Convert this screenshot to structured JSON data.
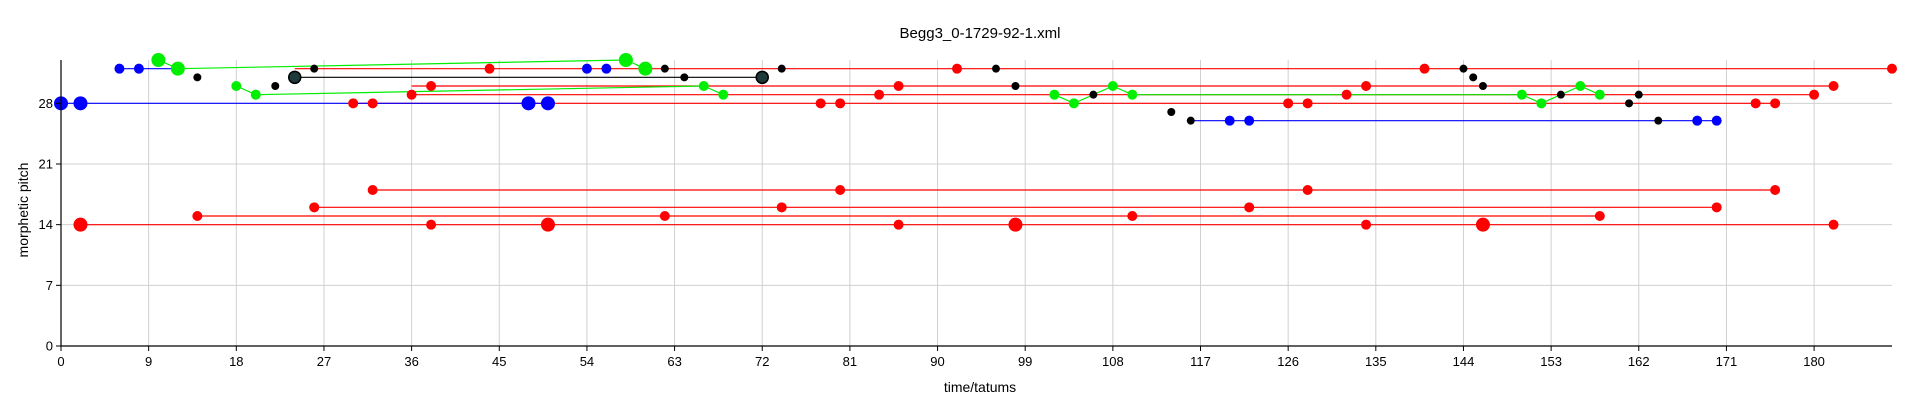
{
  "chart_data": {
    "type": "scatter",
    "title": "Begg3_0-1729-92-1.xml",
    "xlabel": "time/tatums",
    "ylabel": "morphetic pitch",
    "xlim": [
      0,
      188
    ],
    "ylim": [
      0,
      33
    ],
    "x_ticks": [
      0,
      9,
      18,
      27,
      36,
      45,
      54,
      63,
      72,
      81,
      90,
      99,
      108,
      117,
      126,
      135,
      144,
      153,
      162,
      171,
      180
    ],
    "y_ticks": [
      0,
      7,
      14,
      21,
      28
    ],
    "grid": true,
    "series": [
      {
        "color": "#ff0000",
        "lines": [
          [
            [
              24,
              32
            ],
            [
              188,
              32
            ]
          ],
          [
            [
              36,
              30
            ],
            [
              182,
              30
            ]
          ],
          [
            [
              30,
              28
            ],
            [
              176,
              28
            ]
          ],
          [
            [
              36,
              29
            ],
            [
              180,
              29
            ]
          ],
          [
            [
              32,
              18
            ],
            [
              176,
              18
            ]
          ],
          [
            [
              26,
              16
            ],
            [
              170,
              16
            ]
          ],
          [
            [
              14,
              15
            ],
            [
              158,
              15
            ]
          ],
          [
            [
              2,
              14
            ],
            [
              182,
              14
            ]
          ]
        ],
        "points": [
          {
            "x": 44,
            "y": 32,
            "s": 5
          },
          {
            "x": 92,
            "y": 32,
            "s": 5
          },
          {
            "x": 140,
            "y": 32,
            "s": 5
          },
          {
            "x": 188,
            "y": 32,
            "s": 5
          },
          {
            "x": 38,
            "y": 30,
            "s": 5
          },
          {
            "x": 86,
            "y": 30,
            "s": 5
          },
          {
            "x": 134,
            "y": 30,
            "s": 5
          },
          {
            "x": 182,
            "y": 30,
            "s": 5
          },
          {
            "x": 36,
            "y": 29,
            "s": 5
          },
          {
            "x": 84,
            "y": 29,
            "s": 5
          },
          {
            "x": 132,
            "y": 29,
            "s": 5
          },
          {
            "x": 180,
            "y": 29,
            "s": 5
          },
          {
            "x": 30,
            "y": 28,
            "s": 5
          },
          {
            "x": 32,
            "y": 28,
            "s": 5
          },
          {
            "x": 78,
            "y": 28,
            "s": 5
          },
          {
            "x": 80,
            "y": 28,
            "s": 5
          },
          {
            "x": 126,
            "y": 28,
            "s": 5
          },
          {
            "x": 128,
            "y": 28,
            "s": 5
          },
          {
            "x": 174,
            "y": 28,
            "s": 5
          },
          {
            "x": 176,
            "y": 28,
            "s": 5
          },
          {
            "x": 32,
            "y": 18,
            "s": 5
          },
          {
            "x": 80,
            "y": 18,
            "s": 5
          },
          {
            "x": 128,
            "y": 18,
            "s": 5
          },
          {
            "x": 176,
            "y": 18,
            "s": 5
          },
          {
            "x": 26,
            "y": 16,
            "s": 5
          },
          {
            "x": 74,
            "y": 16,
            "s": 5
          },
          {
            "x": 122,
            "y": 16,
            "s": 5
          },
          {
            "x": 170,
            "y": 16,
            "s": 5
          },
          {
            "x": 14,
            "y": 15,
            "s": 5
          },
          {
            "x": 62,
            "y": 15,
            "s": 5
          },
          {
            "x": 110,
            "y": 15,
            "s": 5
          },
          {
            "x": 158,
            "y": 15,
            "s": 5
          },
          {
            "x": 2,
            "y": 14,
            "s": 7
          },
          {
            "x": 38,
            "y": 14,
            "s": 5
          },
          {
            "x": 50,
            "y": 14,
            "s": 7
          },
          {
            "x": 86,
            "y": 14,
            "s": 5
          },
          {
            "x": 98,
            "y": 14,
            "s": 7
          },
          {
            "x": 134,
            "y": 14,
            "s": 5
          },
          {
            "x": 146,
            "y": 14,
            "s": 7
          },
          {
            "x": 182,
            "y": 14,
            "s": 5
          }
        ]
      },
      {
        "color": "#0000ff",
        "lines": [
          [
            [
              0,
              28
            ],
            [
              50,
              28
            ]
          ],
          [
            [
              6,
              32
            ],
            [
              12,
              32
            ]
          ],
          [
            [
              116,
              26
            ],
            [
              170,
              26
            ]
          ]
        ],
        "points": [
          {
            "x": 0,
            "y": 28,
            "s": 7
          },
          {
            "x": 2,
            "y": 28,
            "s": 7
          },
          {
            "x": 48,
            "y": 28,
            "s": 7
          },
          {
            "x": 50,
            "y": 28,
            "s": 7
          },
          {
            "x": 6,
            "y": 32,
            "s": 5
          },
          {
            "x": 8,
            "y": 32,
            "s": 5
          },
          {
            "x": 54,
            "y": 32,
            "s": 5
          },
          {
            "x": 56,
            "y": 32,
            "s": 5
          },
          {
            "x": 120,
            "y": 26,
            "s": 5
          },
          {
            "x": 122,
            "y": 26,
            "s": 5
          },
          {
            "x": 168,
            "y": 26,
            "s": 5
          },
          {
            "x": 170,
            "y": 26,
            "s": 5
          }
        ]
      },
      {
        "color": "#00ee00",
        "lines": [
          [
            [
              10,
              33
            ],
            [
              12,
              32
            ]
          ],
          [
            [
              12,
              32
            ],
            [
              58,
              33
            ]
          ],
          [
            [
              58,
              33
            ],
            [
              60,
              32
            ]
          ],
          [
            [
              18,
              30
            ],
            [
              20,
              29
            ]
          ],
          [
            [
              20,
              29
            ],
            [
              66,
              30
            ]
          ],
          [
            [
              66,
              30
            ],
            [
              68,
              29
            ]
          ],
          [
            [
              102,
              29
            ],
            [
              104,
              28
            ]
          ],
          [
            [
              104,
              28
            ],
            [
              108,
              30
            ]
          ],
          [
            [
              108,
              30
            ],
            [
              110,
              29
            ]
          ],
          [
            [
              110,
              29
            ],
            [
              150,
              29
            ]
          ],
          [
            [
              150,
              29
            ],
            [
              152,
              28
            ]
          ],
          [
            [
              152,
              28
            ],
            [
              156,
              30
            ]
          ],
          [
            [
              156,
              30
            ],
            [
              158,
              29
            ]
          ]
        ],
        "points": [
          {
            "x": 10,
            "y": 33,
            "s": 7
          },
          {
            "x": 12,
            "y": 32,
            "s": 7
          },
          {
            "x": 58,
            "y": 33,
            "s": 7
          },
          {
            "x": 60,
            "y": 32,
            "s": 7
          },
          {
            "x": 18,
            "y": 30,
            "s": 5
          },
          {
            "x": 20,
            "y": 29,
            "s": 5
          },
          {
            "x": 66,
            "y": 30,
            "s": 5
          },
          {
            "x": 68,
            "y": 29,
            "s": 5
          },
          {
            "x": 102,
            "y": 29,
            "s": 5
          },
          {
            "x": 104,
            "y": 28,
            "s": 5
          },
          {
            "x": 108,
            "y": 30,
            "s": 5
          },
          {
            "x": 110,
            "y": 29,
            "s": 5
          },
          {
            "x": 150,
            "y": 29,
            "s": 5
          },
          {
            "x": 152,
            "y": 28,
            "s": 5
          },
          {
            "x": 156,
            "y": 30,
            "s": 5
          },
          {
            "x": 158,
            "y": 29,
            "s": 5
          }
        ]
      },
      {
        "color": "#000000",
        "lines": [
          [
            [
              24,
              31
            ],
            [
              72,
              31
            ]
          ]
        ],
        "points": [
          {
            "x": 14,
            "y": 31,
            "s": 4
          },
          {
            "x": 22,
            "y": 30,
            "s": 4
          },
          {
            "x": 26,
            "y": 32,
            "s": 4
          },
          {
            "x": 62,
            "y": 32,
            "s": 4
          },
          {
            "x": 64,
            "y": 31,
            "s": 4
          },
          {
            "x": 74,
            "y": 32,
            "s": 4
          },
          {
            "x": 96,
            "y": 32,
            "s": 4
          },
          {
            "x": 98,
            "y": 30,
            "s": 4
          },
          {
            "x": 106,
            "y": 29,
            "s": 4
          },
          {
            "x": 114,
            "y": 27,
            "s": 4
          },
          {
            "x": 144,
            "y": 32,
            "s": 4
          },
          {
            "x": 145,
            "y": 31,
            "s": 4
          },
          {
            "x": 146,
            "y": 30,
            "s": 4
          },
          {
            "x": 154,
            "y": 29,
            "s": 4
          },
          {
            "x": 161,
            "y": 28,
            "s": 4
          },
          {
            "x": 162,
            "y": 29,
            "s": 4
          },
          {
            "x": 24,
            "y": 31,
            "s": 6
          },
          {
            "x": 72,
            "y": 31,
            "s": 6
          },
          {
            "x": 116,
            "y": 26,
            "s": 4
          },
          {
            "x": 164,
            "y": 26,
            "s": 4
          }
        ]
      }
    ]
  }
}
